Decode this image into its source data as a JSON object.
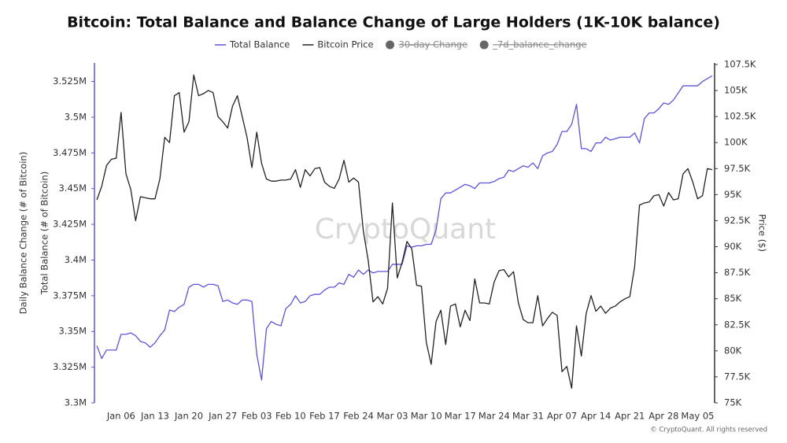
{
  "chart_data": {
    "type": "line",
    "title": "Bitcoin: Total Balance and Balance Change of Large Holders (1K-10K balance)",
    "y_labels": [
      "Daily Balance Change (# of Bitcoin)",
      "Total Balance (# of Bitcoin)"
    ],
    "y2_label": "Price ($)",
    "watermark": "CryptoQuant",
    "footer": "© CryptoQuant. All rights reserved",
    "hidden_legend": [
      "30-day Change",
      "_7d_balance_change"
    ],
    "hidden_color": "#666666",
    "categories": [
      null,
      null,
      null,
      null,
      null,
      "Jan 06",
      null,
      null,
      null,
      null,
      null,
      null,
      "Jan 13",
      null,
      null,
      null,
      null,
      null,
      null,
      "Jan 20",
      null,
      null,
      null,
      null,
      null,
      null,
      "Jan 27",
      null,
      null,
      null,
      null,
      null,
      null,
      "Feb 03",
      null,
      null,
      null,
      null,
      null,
      null,
      "Feb 10",
      null,
      null,
      null,
      null,
      null,
      null,
      "Feb 17",
      null,
      null,
      null,
      null,
      null,
      null,
      "Feb 24",
      null,
      null,
      null,
      null,
      null,
      null,
      "Mar 03",
      null,
      null,
      null,
      null,
      null,
      null,
      "Mar 10",
      null,
      null,
      null,
      null,
      null,
      null,
      "Mar 17",
      null,
      null,
      null,
      null,
      null,
      null,
      "Mar 24",
      null,
      null,
      null,
      null,
      null,
      null,
      "Mar 31",
      null,
      null,
      null,
      null,
      null,
      null,
      "Apr 07",
      null,
      null,
      null,
      null,
      null,
      null,
      "Apr 14",
      null,
      null,
      null,
      null,
      null,
      null,
      "Apr 21",
      null,
      null,
      null,
      null,
      null,
      null,
      "Apr 28",
      null,
      null,
      null,
      null,
      null,
      null,
      "May 05",
      null,
      null,
      null
    ],
    "series": [
      {
        "name": "Total Balance",
        "color": "#5c55d6",
        "values": [
          3.34,
          3.331,
          3.337,
          3.337,
          3.337,
          3.348,
          3.348,
          3.349,
          3.347,
          3.343,
          3.342,
          3.339,
          3.342,
          3.347,
          3.351,
          3.365,
          3.364,
          3.367,
          3.369,
          3.381,
          3.383,
          3.383,
          3.381,
          3.383,
          3.383,
          3.382,
          3.371,
          3.372,
          3.37,
          3.369,
          3.372,
          3.372,
          3.371,
          3.334,
          3.316,
          3.352,
          3.357,
          3.355,
          3.354,
          3.366,
          3.369,
          3.375,
          3.37,
          3.371,
          3.375,
          3.376,
          3.376,
          3.379,
          3.381,
          3.381,
          3.384,
          3.383,
          3.39,
          3.388,
          3.393,
          3.39,
          3.393,
          3.391,
          3.392,
          3.392,
          3.392,
          3.397,
          3.397,
          3.397,
          3.41,
          3.409,
          3.41,
          3.41,
          3.411,
          3.411,
          3.421,
          3.443,
          3.447,
          3.447,
          3.449,
          3.451,
          3.453,
          3.452,
          3.45,
          3.454,
          3.454,
          3.454,
          3.455,
          3.457,
          3.458,
          3.463,
          3.462,
          3.464,
          3.466,
          3.465,
          3.468,
          3.464,
          3.473,
          3.475,
          3.476,
          3.481,
          3.49,
          3.49,
          3.495,
          3.509,
          3.478,
          3.478,
          3.476,
          3.482,
          3.482,
          3.486,
          3.484,
          3.485,
          3.486,
          3.486,
          3.486,
          3.489,
          3.482,
          3.499,
          3.503,
          3.503,
          3.506,
          3.51,
          3.509,
          3.512,
          3.517,
          3.522,
          3.522,
          3.522,
          3.522,
          3.525,
          3.527,
          3.529
        ]
      },
      {
        "name": "Bitcoin Price",
        "color": "#222222",
        "axis": "y2",
        "values": [
          94.5,
          95.8,
          97.8,
          98.4,
          98.5,
          102.9,
          97.0,
          95.5,
          92.5,
          94.8,
          94.7,
          94.6,
          94.6,
          96.5,
          100.5,
          100.0,
          104.5,
          104.8,
          101.0,
          102.0,
          106.5,
          104.5,
          104.7,
          105.0,
          104.8,
          102.5,
          102.0,
          101.4,
          103.5,
          104.5,
          102.5,
          100.5,
          97.6,
          101.0,
          98.0,
          96.5,
          96.3,
          96.3,
          96.4,
          96.4,
          96.5,
          97.4,
          95.7,
          97.4,
          96.8,
          97.5,
          97.6,
          96.2,
          95.8,
          95.6,
          96.5,
          98.3,
          96.2,
          96.6,
          96.2,
          91.5,
          88.7,
          84.7,
          85.2,
          84.5,
          86.0,
          94.2,
          87.0,
          88.5,
          90.5,
          89.8,
          86.3,
          86.2,
          80.8,
          78.7,
          82.8,
          83.9,
          80.6,
          84.3,
          84.5,
          82.3,
          83.9,
          82.9,
          86.9,
          84.6,
          84.6,
          84.5,
          86.6,
          87.7,
          87.8,
          87.1,
          87.6,
          84.6,
          83.0,
          82.7,
          82.7,
          85.3,
          82.4,
          83.1,
          83.7,
          83.4,
          78.0,
          78.5,
          76.4,
          82.4,
          79.5,
          83.6,
          85.3,
          83.8,
          84.3,
          83.6,
          84.1,
          84.3,
          84.7,
          85.0,
          85.2,
          88.1,
          94.0,
          94.2,
          94.3,
          94.9,
          95.0,
          93.9,
          95.2,
          94.5,
          94.6,
          97.0,
          97.5,
          96.2,
          94.6,
          94.9,
          97.5,
          97.4
        ]
      }
    ],
    "ylim": [
      3.3,
      3.538
    ],
    "yticks": [
      {
        "value": 3.3,
        "label": "3.3M"
      },
      {
        "value": 3.325,
        "label": "3.325M"
      },
      {
        "value": 3.35,
        "label": "3.35M"
      },
      {
        "value": 3.375,
        "label": "3.375M"
      },
      {
        "value": 3.4,
        "label": "3.4M"
      },
      {
        "value": 3.425,
        "label": "3.425M"
      },
      {
        "value": 3.45,
        "label": "3.45M"
      },
      {
        "value": 3.475,
        "label": "3.475M"
      },
      {
        "value": 3.5,
        "label": "3.5M"
      },
      {
        "value": 3.525,
        "label": "3.525M"
      }
    ],
    "y2lim": [
      75,
      107.65
    ],
    "y2ticks": [
      {
        "value": 75,
        "label": "75K"
      },
      {
        "value": 77.5,
        "label": "77.5K"
      },
      {
        "value": 80,
        "label": "80K"
      },
      {
        "value": 82.5,
        "label": "82.5K"
      },
      {
        "value": 85,
        "label": "85K"
      },
      {
        "value": 87.5,
        "label": "87.5K"
      },
      {
        "value": 90,
        "label": "90K"
      },
      {
        "value": 92.5,
        "label": "92.5K"
      },
      {
        "value": 95,
        "label": "95K"
      },
      {
        "value": 97.5,
        "label": "97.5K"
      },
      {
        "value": 100,
        "label": "100K"
      },
      {
        "value": 102.5,
        "label": "102.5K"
      },
      {
        "value": 105,
        "label": "105K"
      },
      {
        "value": 107.5,
        "label": "107.5K"
      }
    ],
    "grid": false
  }
}
